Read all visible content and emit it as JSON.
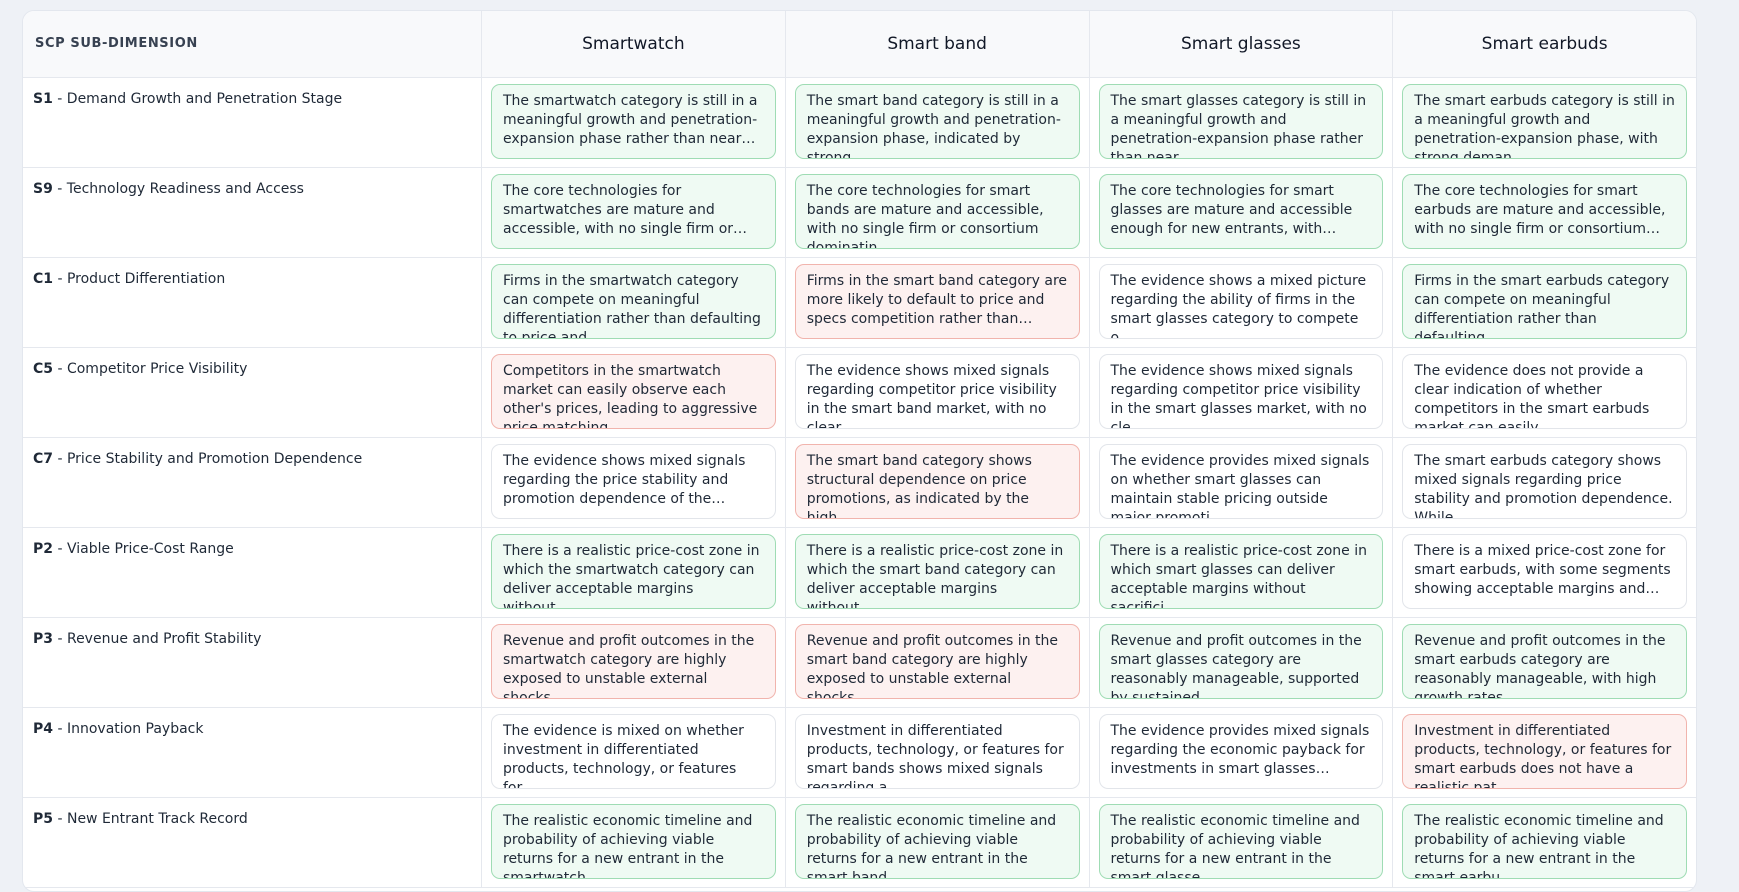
{
  "table": {
    "header": "SCP SUB-DIMENSION",
    "columns": [
      "Smartwatch",
      "Smart band",
      "Smart glasses",
      "Smart earbuds"
    ],
    "rows": [
      {
        "code": "S1",
        "name": "- Demand Growth and Penetration Stage",
        "cells": [
          {
            "text": "The smartwatch category is still in a meaningful growth and penetration-expansion phase rather than near…",
            "status": "green"
          },
          {
            "text": "The smart band category is still in a meaningful growth and penetration-expansion phase, indicated by strong…",
            "status": "green"
          },
          {
            "text": "The smart glasses category is still in a meaningful growth and penetration-expansion phase rather than near…",
            "status": "green"
          },
          {
            "text": "The smart earbuds category is still in a meaningful growth and penetration-expansion phase, with strong deman…",
            "status": "green"
          }
        ]
      },
      {
        "code": "S9",
        "name": "- Technology Readiness and Access",
        "cells": [
          {
            "text": "The core technologies for smartwatches are mature and accessible, with no single firm or…",
            "status": "green"
          },
          {
            "text": "The core technologies for smart bands are mature and accessible, with no single firm or consortium dominatin…",
            "status": "green"
          },
          {
            "text": "The core technologies for smart glasses are mature and accessible enough for new entrants, with…",
            "status": "green"
          },
          {
            "text": "The core technologies for smart earbuds are mature and accessible, with no single firm or consortium…",
            "status": "green"
          }
        ]
      },
      {
        "code": "C1",
        "name": "- Product Differentiation",
        "cells": [
          {
            "text": "Firms in the smartwatch category can compete on meaningful differentiation rather than defaulting to price and…",
            "status": "green"
          },
          {
            "text": "Firms in the smart band category are more likely to default to price and specs competition rather than…",
            "status": "red"
          },
          {
            "text": "The evidence shows a mixed picture regarding the ability of firms in the smart glasses category to compete o…",
            "status": "white"
          },
          {
            "text": "Firms in the smart earbuds category can compete on meaningful differentiation rather than defaulting…",
            "status": "green"
          }
        ]
      },
      {
        "code": "C5",
        "name": "- Competitor Price Visibility",
        "cells": [
          {
            "text": "Competitors in the smartwatch market can easily observe each other's prices, leading to aggressive price matching…",
            "status": "red"
          },
          {
            "text": "The evidence shows mixed signals regarding competitor price visibility in the smart band market, with no clear…",
            "status": "white"
          },
          {
            "text": "The evidence shows mixed signals regarding competitor price visibility in the smart glasses market, with no cle…",
            "status": "white"
          },
          {
            "text": "The evidence does not provide a clear indication of whether competitors in the smart earbuds market can easily…",
            "status": "white"
          }
        ]
      },
      {
        "code": "C7",
        "name": "- Price Stability and Promotion Dependence",
        "cells": [
          {
            "text": "The evidence shows mixed signals regarding the price stability and promotion dependence of the…",
            "status": "white"
          },
          {
            "text": "The smart band category shows structural dependence on price promotions, as indicated by the high…",
            "status": "red"
          },
          {
            "text": "The evidence provides mixed signals on whether smart glasses can maintain stable pricing outside major promoti…",
            "status": "white"
          },
          {
            "text": "The smart earbuds category shows mixed signals regarding price stability and promotion dependence. While…",
            "status": "white"
          }
        ]
      },
      {
        "code": "P2",
        "name": "- Viable Price-Cost Range",
        "cells": [
          {
            "text": "There is a realistic price-cost zone in which the smartwatch category can deliver acceptable margins without…",
            "status": "green"
          },
          {
            "text": "There is a realistic price-cost zone in which the smart band category can deliver acceptable margins without…",
            "status": "green"
          },
          {
            "text": "There is a realistic price-cost zone in which smart glasses can deliver acceptable margins without sacrifici…",
            "status": "green"
          },
          {
            "text": "There is a mixed price-cost zone for smart earbuds, with some segments showing acceptable margins and…",
            "status": "white"
          }
        ]
      },
      {
        "code": "P3",
        "name": "- Revenue and Profit Stability",
        "cells": [
          {
            "text": "Revenue and profit outcomes in the smartwatch category are highly exposed to unstable external shocks,…",
            "status": "red"
          },
          {
            "text": "Revenue and profit outcomes in the smart band category are highly exposed to unstable external shocks.",
            "status": "red"
          },
          {
            "text": "Revenue and profit outcomes in the smart glasses category are reasonably manageable, supported by sustained…",
            "status": "green"
          },
          {
            "text": "Revenue and profit outcomes in the smart earbuds category are reasonably manageable, with high growth rates…",
            "status": "green"
          }
        ]
      },
      {
        "code": "P4",
        "name": "- Innovation Payback",
        "cells": [
          {
            "text": "The evidence is mixed on whether investment in differentiated products, technology, or features for…",
            "status": "white"
          },
          {
            "text": "Investment in differentiated products, technology, or features for smart bands shows mixed signals regarding a…",
            "status": "white"
          },
          {
            "text": "The evidence provides mixed signals regarding the economic payback for investments in smart glasses…",
            "status": "white"
          },
          {
            "text": "Investment in differentiated products, technology, or features for smart earbuds does not have a realistic pat…",
            "status": "red"
          }
        ]
      },
      {
        "code": "P5",
        "name": "- New Entrant Track Record",
        "cells": [
          {
            "text": "The realistic economic timeline and probability of achieving viable returns for a new entrant in the smartwatch…",
            "status": "green"
          },
          {
            "text": "The realistic economic timeline and probability of achieving viable returns for a new entrant in the smart band…",
            "status": "green"
          },
          {
            "text": "The realistic economic timeline and probability of achieving viable returns for a new entrant in the smart glasse…",
            "status": "green"
          },
          {
            "text": "The realistic economic timeline and probability of achieving viable returns for a new entrant in the smart earbu…",
            "status": "green"
          }
        ]
      }
    ]
  }
}
